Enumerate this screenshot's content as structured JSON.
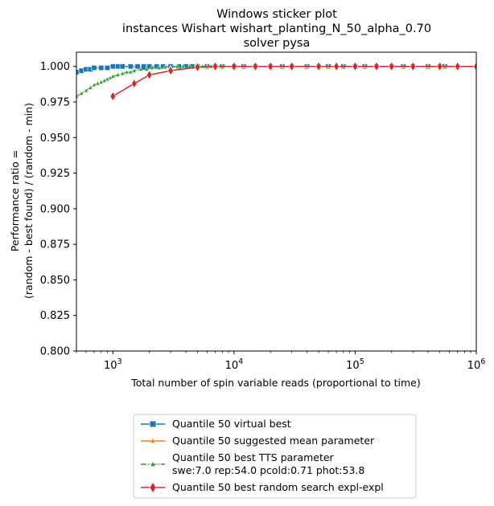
{
  "chart_data": {
    "type": "line",
    "title_lines": [
      "Windows sticker plot",
      "instances Wishart wishart_planting_N_50_alpha_0.70",
      "solver pysa"
    ],
    "xlabel": "Total number of spin variable reads (proportional to time)",
    "ylabel_lines": [
      "Performance ratio =",
      "(random - best found) / (random - min)"
    ],
    "xscale": "log",
    "xlim": [
      500,
      1000000
    ],
    "ylim": [
      0.8,
      1.01
    ],
    "x_ticks": [
      {
        "value": 1000,
        "base": "10",
        "exp": "3"
      },
      {
        "value": 10000,
        "base": "10",
        "exp": "4"
      },
      {
        "value": 100000,
        "base": "10",
        "exp": "5"
      },
      {
        "value": 1000000,
        "base": "10",
        "exp": "6"
      }
    ],
    "y_ticks": [
      {
        "value": 0.8,
        "label": "0.800"
      },
      {
        "value": 0.825,
        "label": "0.825"
      },
      {
        "value": 0.85,
        "label": "0.850"
      },
      {
        "value": 0.875,
        "label": "0.875"
      },
      {
        "value": 0.9,
        "label": "0.900"
      },
      {
        "value": 0.925,
        "label": "0.925"
      },
      {
        "value": 0.95,
        "label": "0.950"
      },
      {
        "value": 0.975,
        "label": "0.975"
      },
      {
        "value": 1.0,
        "label": "1.000"
      }
    ],
    "grid": false,
    "legend_position": "below",
    "series": [
      {
        "name": "Quantile 50 virtual best",
        "color": "#1f77b4",
        "marker": "square",
        "linestyle": "solid",
        "x": [
          500,
          550,
          600,
          650,
          700,
          800,
          900,
          1000,
          1100,
          1200,
          1400,
          1600,
          1800,
          2000,
          2300,
          2600,
          3000,
          3500,
          4000,
          4500,
          5000,
          6000,
          7000,
          8000,
          10000,
          12000,
          15000,
          20000,
          25000,
          30000,
          40000,
          50000,
          60000,
          80000,
          100000,
          120000,
          150000,
          200000,
          250000,
          300000,
          400000,
          500000,
          550000
        ],
        "y": [
          0.996,
          0.997,
          0.998,
          0.998,
          0.999,
          0.999,
          0.999,
          1.0,
          1.0,
          1.0,
          1.0,
          1.0,
          1.0,
          1.0,
          1.0,
          1.0,
          1.0,
          1.0,
          1.0,
          1.0,
          1.0,
          1.0,
          1.0,
          1.0,
          1.0,
          1.0,
          1.0,
          1.0,
          1.0,
          1.0,
          1.0,
          1.0,
          1.0,
          1.0,
          1.0,
          1.0,
          1.0,
          1.0,
          1.0,
          1.0,
          1.0,
          1.0,
          1.0
        ]
      },
      {
        "name": "Quantile 50 suggested mean parameter",
        "color": "#ff7f0e",
        "marker": "triangle",
        "linestyle": "solid",
        "x": [
          5000,
          6000,
          7000,
          8000,
          10000,
          12000,
          15000,
          20000,
          25000,
          30000,
          40000,
          50000,
          60000,
          80000,
          100000,
          120000,
          150000,
          200000,
          250000,
          300000,
          400000,
          500000,
          550000
        ],
        "y": [
          1.0,
          1.0,
          1.0,
          1.0,
          1.0,
          1.0,
          1.0,
          1.0,
          1.0,
          1.0,
          1.0,
          1.0,
          1.0,
          1.0,
          1.0,
          1.0,
          1.0,
          1.0,
          1.0,
          1.0,
          1.0,
          1.0,
          1.0
        ]
      },
      {
        "name": "Quantile 50 best TTS parameter",
        "name_line2": "swe:7.0 rep:54.0 pcold:0.71 phot:53.8",
        "color": "#2ca02c",
        "marker": "triangle",
        "linestyle": "dashdot",
        "x": [
          500,
          550,
          600,
          650,
          700,
          750,
          800,
          850,
          900,
          950,
          1000,
          1100,
          1200,
          1300,
          1400,
          1500,
          1700,
          1900,
          2100,
          2400,
          2700,
          3000,
          3400,
          3800,
          4300,
          4800,
          5500,
          6500,
          8000,
          10000,
          15000,
          20000,
          30000,
          50000,
          80000,
          100000,
          150000,
          200000,
          300000,
          500000
        ],
        "y": [
          0.979,
          0.981,
          0.983,
          0.985,
          0.987,
          0.988,
          0.989,
          0.99,
          0.991,
          0.992,
          0.993,
          0.994,
          0.995,
          0.996,
          0.996,
          0.997,
          0.998,
          0.998,
          0.999,
          0.999,
          0.9995,
          0.9995,
          1.0,
          1.0,
          1.0,
          1.0,
          1.0,
          1.0,
          1.0,
          1.0,
          1.0,
          1.0,
          1.0,
          1.0,
          1.0,
          1.0,
          1.0,
          1.0,
          1.0,
          1.0
        ]
      },
      {
        "name": "Quantile 50  best random search expl-expl",
        "color": "#d62728",
        "marker": "diamond",
        "linestyle": "solid",
        "x": [
          1000,
          1500,
          2000,
          3000,
          5000,
          7000,
          10000,
          15000,
          20000,
          30000,
          50000,
          70000,
          100000,
          150000,
          200000,
          300000,
          500000,
          700000,
          1000000
        ],
        "y": [
          0.979,
          0.988,
          0.994,
          0.997,
          0.9995,
          1.0,
          1.0,
          1.0,
          1.0,
          1.0,
          1.0,
          1.0,
          1.0,
          1.0,
          1.0,
          1.0,
          1.0,
          1.0,
          1.0
        ]
      }
    ]
  }
}
